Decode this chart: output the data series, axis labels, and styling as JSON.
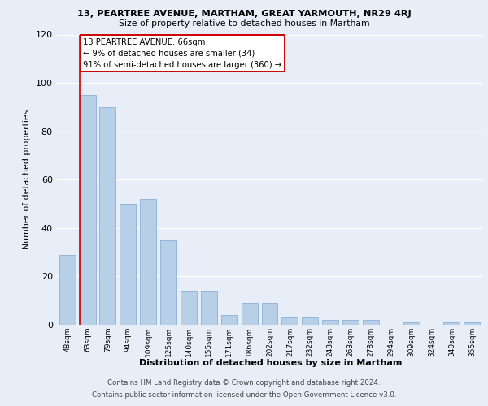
{
  "title": "13, PEARTREE AVENUE, MARTHAM, GREAT YARMOUTH, NR29 4RJ",
  "subtitle": "Size of property relative to detached houses in Martham",
  "xlabel": "Distribution of detached houses by size in Martham",
  "ylabel": "Number of detached properties",
  "categories": [
    "48sqm",
    "63sqm",
    "79sqm",
    "94sqm",
    "109sqm",
    "125sqm",
    "140sqm",
    "155sqm",
    "171sqm",
    "186sqm",
    "202sqm",
    "217sqm",
    "232sqm",
    "248sqm",
    "263sqm",
    "278sqm",
    "294sqm",
    "309sqm",
    "324sqm",
    "340sqm",
    "355sqm"
  ],
  "values": [
    29,
    95,
    90,
    50,
    52,
    35,
    14,
    14,
    4,
    9,
    9,
    3,
    3,
    2,
    2,
    2,
    0,
    1,
    0,
    1,
    1
  ],
  "bar_color": "#b8cfe8",
  "bar_edge_color": "#8ab0d8",
  "property_line_color": "#cc0000",
  "annotation_title": "13 PEARTREE AVENUE: 66sqm",
  "annotation_line1": "← 9% of detached houses are smaller (34)",
  "annotation_line2": "91% of semi-detached houses are larger (360) →",
  "annotation_box_facecolor": "#ffffff",
  "annotation_box_edgecolor": "#cc0000",
  "ylim": [
    0,
    120
  ],
  "yticks": [
    0,
    20,
    40,
    60,
    80,
    100,
    120
  ],
  "bg_color": "#e8eef8",
  "footer_line1": "Contains HM Land Registry data © Crown copyright and database right 2024.",
  "footer_line2": "Contains public sector information licensed under the Open Government Licence v3.0."
}
